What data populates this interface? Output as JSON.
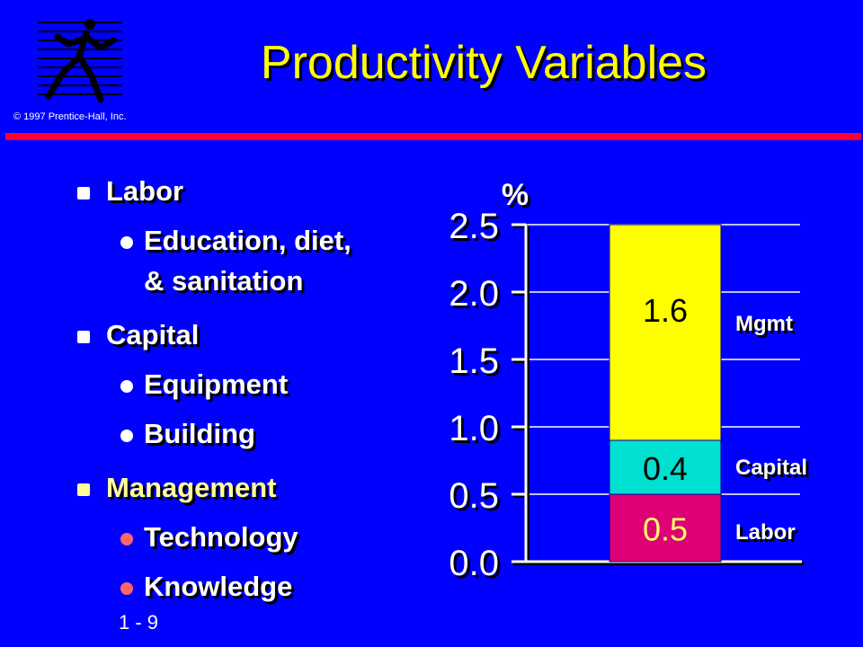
{
  "slide": {
    "title": "Productivity Variables",
    "copyright": "© 1997 Prentice-Hall, Inc.",
    "page_number": "1 - 9",
    "logo_icon": "runner-logo-icon"
  },
  "bullets": [
    {
      "level": 1,
      "text": "Labor",
      "style": "white"
    },
    {
      "level": 2,
      "text": "Education, diet,",
      "style": "white"
    },
    {
      "level": 2,
      "text": "& sanitation",
      "style": "white",
      "continuation": true
    },
    {
      "level": 1,
      "text": "Capital",
      "style": "white"
    },
    {
      "level": 2,
      "text": "Equipment",
      "style": "white"
    },
    {
      "level": 2,
      "text": "Building",
      "style": "white"
    },
    {
      "level": 1,
      "text": "Management",
      "style": "yellow"
    },
    {
      "level": 2,
      "text": "Technology",
      "style": "red"
    },
    {
      "level": 2,
      "text": "Knowledge",
      "style": "red"
    }
  ],
  "chart_data": {
    "type": "bar",
    "stacked": true,
    "ylabel": "%",
    "ylim": [
      0,
      2.5
    ],
    "yticks": [
      "0.0",
      "0.5",
      "1.0",
      "1.5",
      "2.0",
      "2.5"
    ],
    "grid": true,
    "segments": [
      {
        "name": "Labor",
        "value": 0.5,
        "label": "0.5",
        "color": "#dd0077",
        "label_color": "#ffff66"
      },
      {
        "name": "Capital",
        "value": 0.4,
        "label": "0.4",
        "color": "#00e0d0",
        "label_color": "#000000"
      },
      {
        "name": "Mgmt",
        "value": 1.6,
        "label": "1.6",
        "color": "#ffff00",
        "label_color": "#000000"
      }
    ]
  },
  "colors": {
    "background": "#0000ff",
    "title": "#ffff00",
    "rule": "#ff0033"
  }
}
